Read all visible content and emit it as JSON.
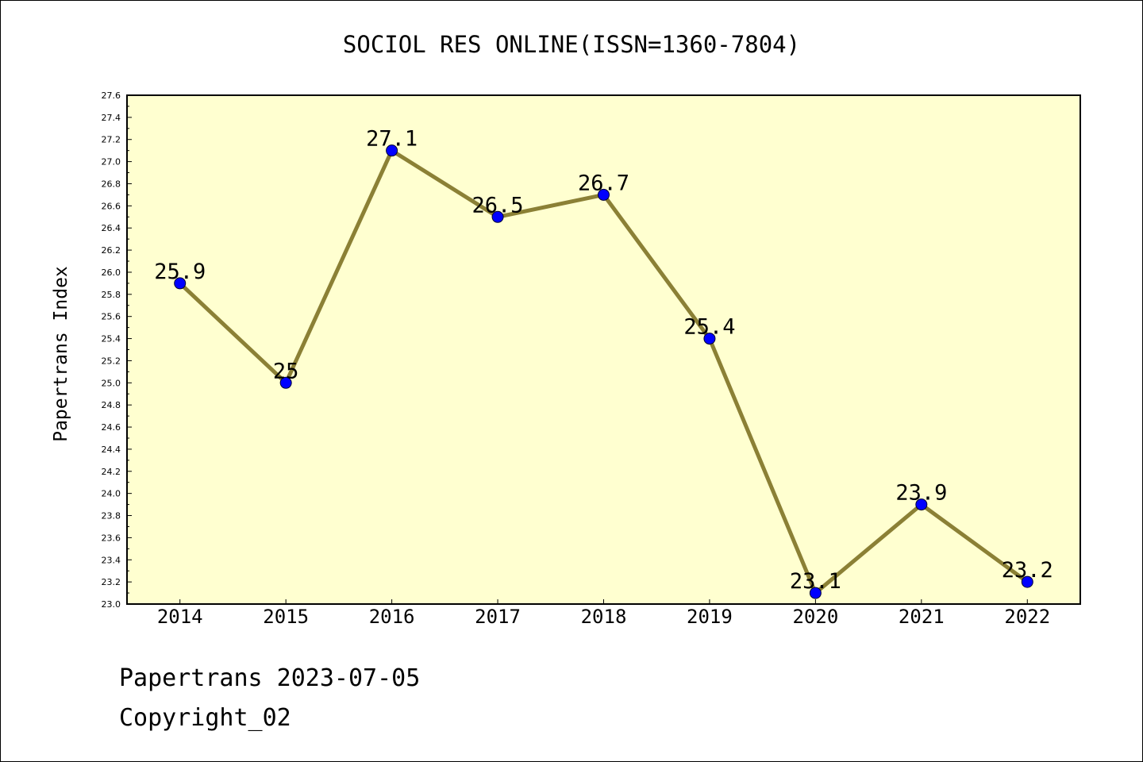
{
  "chart_data": {
    "type": "line",
    "title": "SOCIOL RES ONLINE(ISSN=1360-7804)",
    "ylabel": "Papertrans Index",
    "xlabel": "",
    "categories": [
      "2014",
      "2015",
      "2016",
      "2017",
      "2018",
      "2019",
      "2020",
      "2021",
      "2022"
    ],
    "values": [
      25.9,
      25.0,
      27.1,
      26.5,
      26.7,
      25.4,
      23.1,
      23.9,
      23.2
    ],
    "data_labels": [
      "25.9",
      "25",
      "27.1",
      "26.5",
      "26.7",
      "25.4",
      "23.1",
      "23.9",
      "23.2"
    ],
    "ylim": [
      23.0,
      27.6
    ],
    "yticks": [
      "23.0",
      "23.2",
      "23.4",
      "23.6",
      "23.8",
      "24.0",
      "24.2",
      "24.4",
      "24.6",
      "24.8",
      "25.0",
      "25.2",
      "25.4",
      "25.6",
      "25.8",
      "26.0",
      "26.2",
      "26.4",
      "26.6",
      "26.8",
      "27.0",
      "27.2",
      "27.4",
      "27.6"
    ],
    "grid": false,
    "colors": {
      "plot_background": "#ffffd0",
      "line": "#8b8035",
      "marker": "#0000ff"
    }
  },
  "footer": {
    "line1": "Papertrans 2023-07-05",
    "line2": "Copyright_02"
  }
}
